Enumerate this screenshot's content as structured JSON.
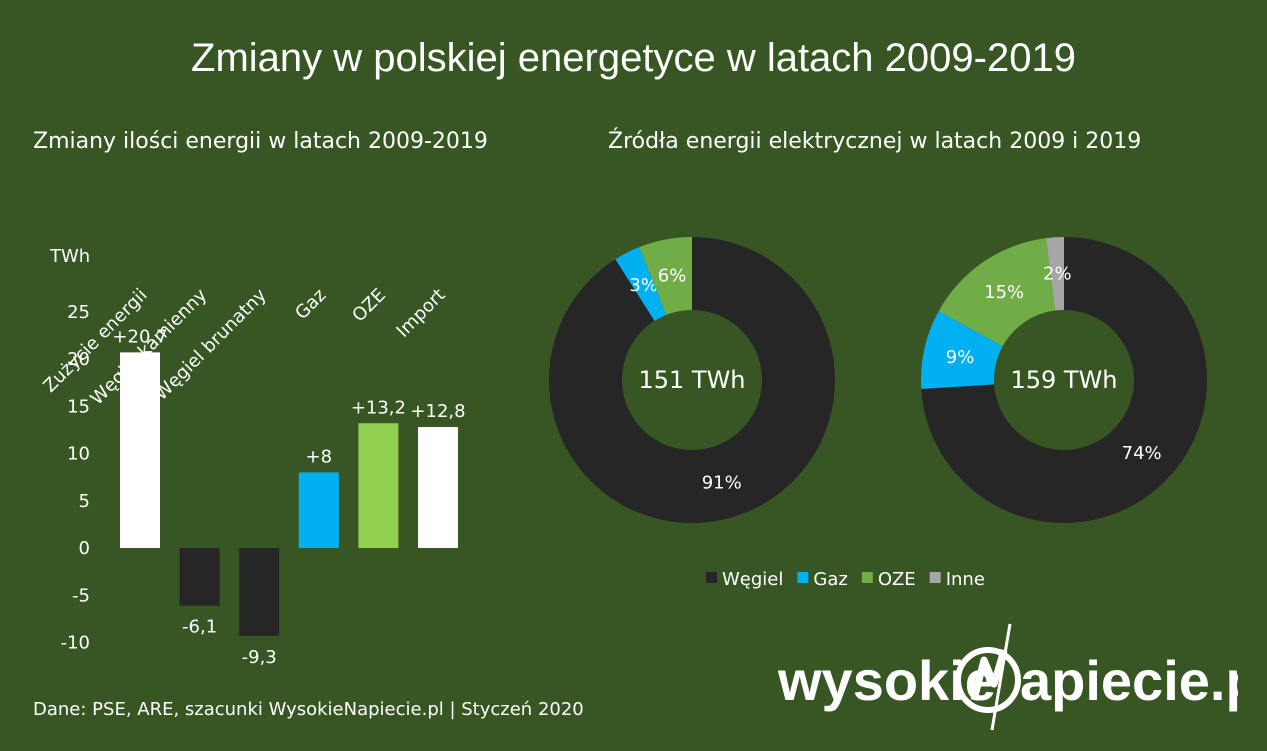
{
  "title": "Zmiany w polskiej energetyce w latach 2009-2019",
  "left_subtitle": "Zmiany ilości energii w latach 2009-2019",
  "right_subtitle": "Źródła energii elektrycznej w latach 2009 i 2019",
  "source": "Dane: PSE, ARE, szacunki WysokieNapiecie.pl  |  Styczeń 2020",
  "logo": {
    "text": "wysokieNapiecie.pl",
    "left": "wysokie",
    "right": "apiecie.pl",
    "mark": "N"
  },
  "colors": {
    "background": "#375623",
    "white": "#ffffff",
    "coal": "#262626",
    "gas": "#00b0f0",
    "oze": "#70ad47",
    "oze_bright": "#92d050",
    "other": "#a6a6a6"
  },
  "chart_data": [
    {
      "type": "bar",
      "title": "Zmiany ilości energii w latach 2009-2019",
      "ylabel": "TWh",
      "ylim": [
        -10,
        25
      ],
      "yticks": [
        "25",
        "20",
        "15",
        "10",
        "5",
        "0",
        "-5",
        "-10"
      ],
      "categories": [
        "Zużycie energii",
        "Węgiel kamienny",
        "Węgiel brunatny",
        "Gaz",
        "OZE",
        "Import"
      ],
      "values": [
        20.7,
        -6.1,
        -9.3,
        8,
        13.2,
        12.8
      ],
      "data_labels": [
        "+20,7",
        "-6,1",
        "-9,3",
        "+8",
        "+13,2",
        "+12,8"
      ],
      "bar_colors": [
        "#ffffff",
        "#262626",
        "#262626",
        "#00b0f0",
        "#92d050",
        "#ffffff"
      ],
      "grid": false
    },
    {
      "type": "pie",
      "subtype": "donut",
      "title": "Źródła energii elektrycznej w latach 2009 i 2019",
      "legend": [
        "Węgiel",
        "Gaz",
        "OZE",
        "Inne"
      ],
      "legend_placement": "bottom",
      "charts": [
        {
          "center_label": "151 TWh",
          "categories": [
            "Węgiel",
            "Gaz",
            "OZE"
          ],
          "values": [
            91,
            3,
            6
          ],
          "labels": [
            "91%",
            "3%",
            "6%"
          ],
          "colors": [
            "#262626",
            "#00b0f0",
            "#70ad47"
          ]
        },
        {
          "center_label": "159 TWh",
          "categories": [
            "Węgiel",
            "Gaz",
            "OZE",
            "Inne"
          ],
          "values": [
            74,
            9,
            15,
            2
          ],
          "labels": [
            "74%",
            "9%",
            "15%",
            "2%"
          ],
          "colors": [
            "#262626",
            "#00b0f0",
            "#70ad47",
            "#a6a6a6"
          ]
        }
      ]
    }
  ]
}
